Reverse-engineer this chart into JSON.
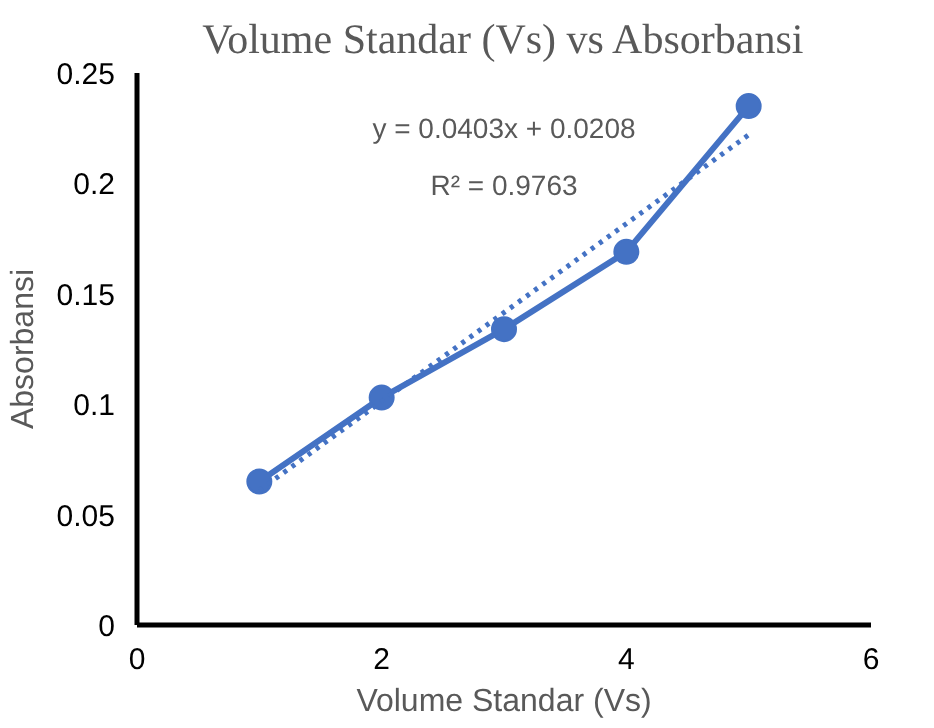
{
  "chart_data": {
    "type": "line",
    "title": "Volume Standar (Vs) vs Absorbansi",
    "xlabel": "Volume Standar (Vs)",
    "ylabel": "Absorbansi",
    "x": [
      1,
      2,
      3,
      4,
      5
    ],
    "series": [
      {
        "color": "#4472c4",
        "values": [
          0.065,
          0.103,
          0.134,
          0.169,
          0.235
        ],
        "marker": "circle",
        "line_style": "solid"
      },
      {
        "type": "line",
        "color": "#4472c4",
        "x": [
          1,
          5
        ],
        "values": [
          0.061,
          0.222
        ],
        "marker": "none",
        "line_style": "dotted"
      }
    ],
    "annotations": [
      "y = 0.0403x + 0.0208",
      "R² = 0.9763"
    ],
    "xlim": [
      0,
      6
    ],
    "xticks": [
      0,
      2,
      4,
      6
    ],
    "ylim": [
      0,
      0.25
    ],
    "yticks": [
      0,
      0.05,
      0.1,
      0.15,
      0.2,
      0.25
    ],
    "grid": false
  }
}
